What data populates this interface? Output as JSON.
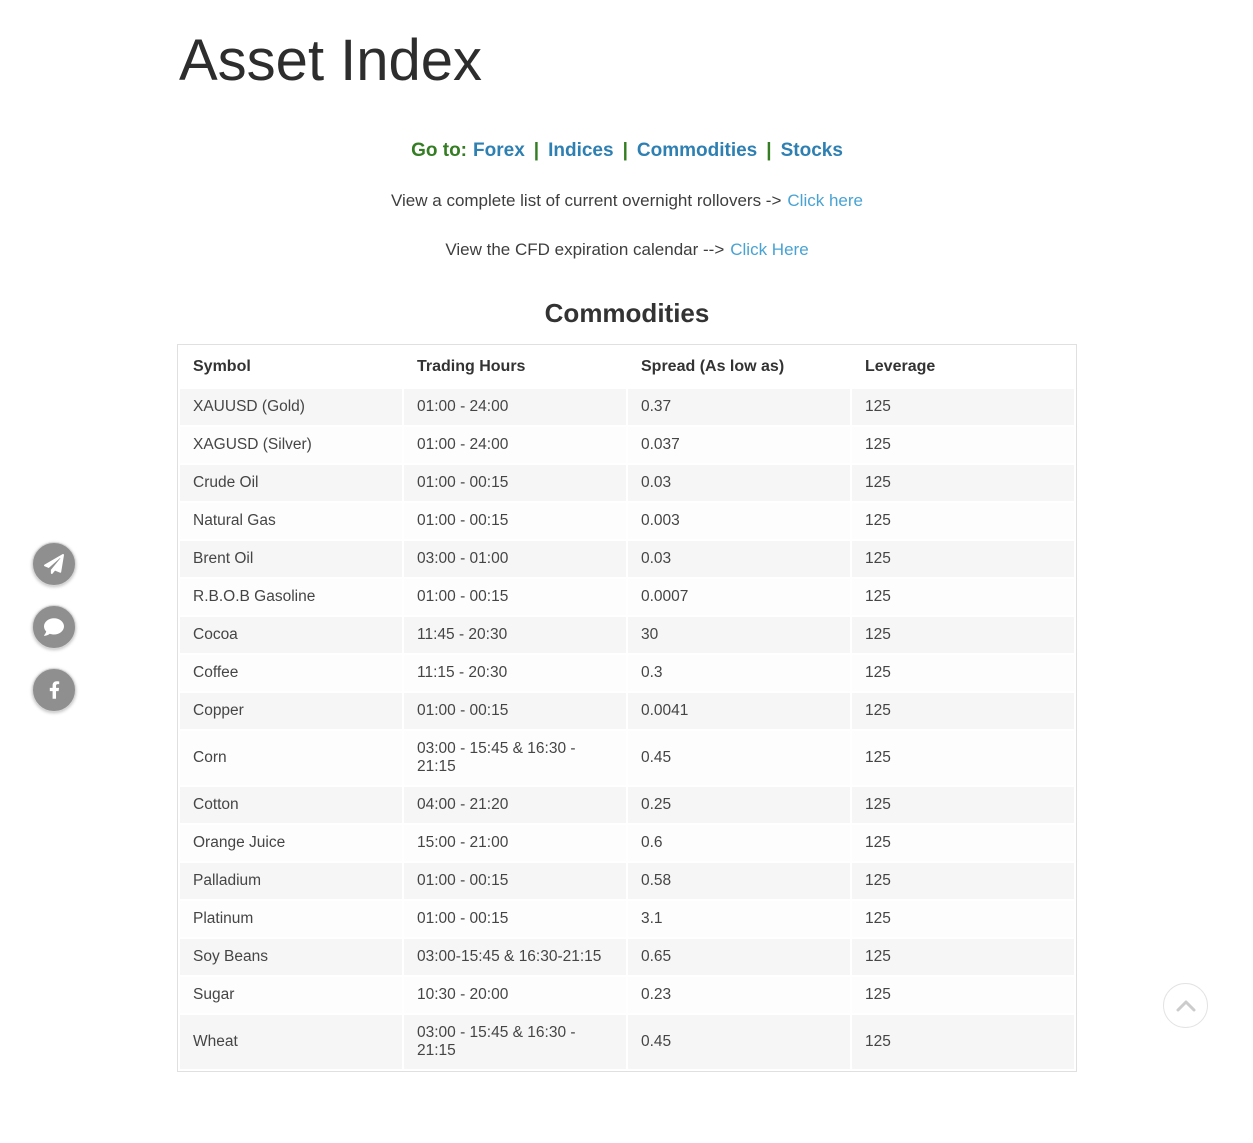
{
  "page": {
    "title": "Asset Index"
  },
  "nav": {
    "label": "Go to:",
    "separator": "|",
    "links": [
      "Forex",
      "Indices",
      "Commodities",
      "Stocks"
    ]
  },
  "notices": [
    {
      "text": "View a complete list of current overnight rollovers ->",
      "link": "Click here"
    },
    {
      "text": "View the CFD expiration calendar -->",
      "link": "Click Here"
    }
  ],
  "section": {
    "heading": "Commodities"
  },
  "table": {
    "columns": [
      "Symbol",
      "Trading Hours",
      "Spread (As low as)",
      "Leverage"
    ],
    "rows": [
      [
        "XAUUSD (Gold)",
        "01:00 - 24:00",
        "0.37",
        "125"
      ],
      [
        "XAGUSD (Silver)",
        "01:00 - 24:00",
        "0.037",
        "125"
      ],
      [
        "Crude Oil",
        "01:00 - 00:15",
        "0.03",
        "125"
      ],
      [
        "Natural Gas",
        "01:00 - 00:15",
        "0.003",
        "125"
      ],
      [
        "Brent Oil",
        "03:00 - 01:00",
        "0.03",
        "125"
      ],
      [
        "R.B.O.B Gasoline",
        "01:00 - 00:15",
        "0.0007",
        "125"
      ],
      [
        "Cocoa",
        "11:45 - 20:30",
        "30",
        "125"
      ],
      [
        "Coffee",
        "11:15 - 20:30",
        "0.3",
        "125"
      ],
      [
        "Copper",
        "01:00 - 00:15",
        "0.0041",
        "125"
      ],
      [
        "Corn",
        "03:00 - 15:45 & 16:30 - 21:15",
        "0.45",
        "125"
      ],
      [
        "Cotton",
        "04:00 - 21:20",
        "0.25",
        "125"
      ],
      [
        "Orange Juice",
        "15:00 - 21:00",
        "0.6",
        "125"
      ],
      [
        "Palladium",
        "01:00 - 00:15",
        "0.58",
        "125"
      ],
      [
        "Platinum",
        "01:00 - 00:15",
        "3.1",
        "125"
      ],
      [
        "Soy Beans",
        "03:00-15:45 & 16:30-21:15",
        "0.65",
        "125"
      ],
      [
        "Sugar",
        "10:30 - 20:00",
        "0.23",
        "125"
      ],
      [
        "Wheat",
        "03:00 - 15:45 & 16:30 - 21:15",
        "0.45",
        "125"
      ]
    ]
  },
  "social": [
    {
      "icon": "telegram-plane-icon"
    },
    {
      "icon": "chat-bubble-icon"
    },
    {
      "icon": "facebook-icon"
    }
  ],
  "scroll_top": {
    "icon": "chevron-up-icon"
  },
  "colors": {
    "accent_green": "#347d23",
    "link_blue": "#2e7fb2",
    "light_link_blue": "#48a3d4",
    "row_stripe": "#f6f6f6",
    "table_border": "#e0e0e0",
    "icon_gray": "#8f8f8f"
  }
}
